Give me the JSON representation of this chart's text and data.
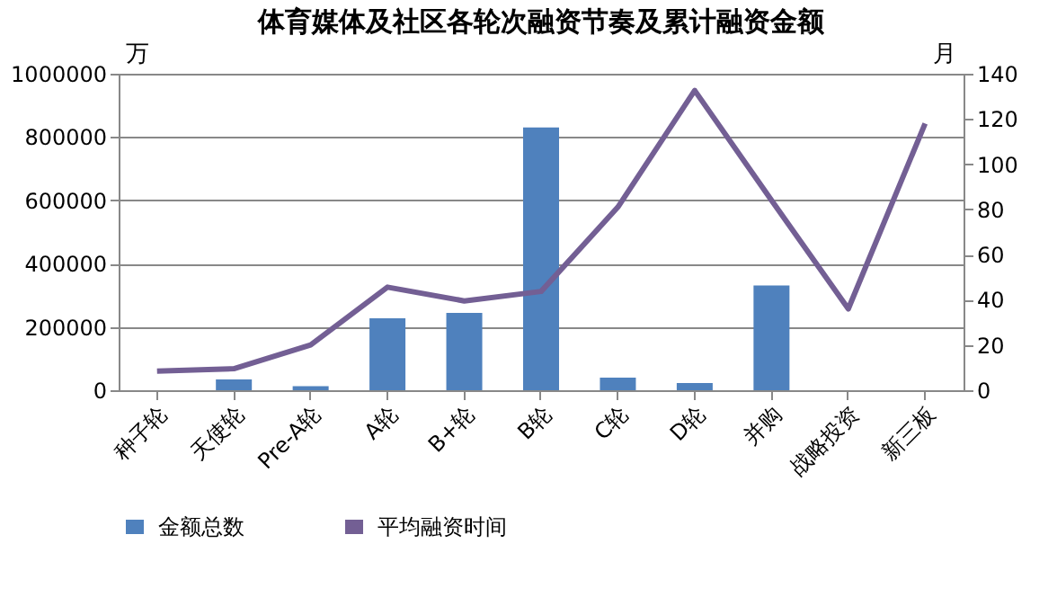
{
  "chart_data": {
    "type": "bar",
    "title": "体育媒体及社区各轮次融资节奏及累计融资金额",
    "ylabel": "万",
    "y2label": "月",
    "categories": [
      "种子轮",
      "天使轮",
      "Pre-A轮",
      "A轮",
      "B+轮",
      "B轮",
      "C轮",
      "D轮",
      "并购",
      "战略投资",
      "新三板"
    ],
    "series": [
      {
        "name": "金额总数",
        "color": "#4f81bd",
        "values": [
          0,
          34000,
          13000,
          227000,
          244000,
          830000,
          40000,
          23000,
          331000,
          0,
          0
        ]
      },
      {
        "name": "平均融资时间",
        "type": "line",
        "axis": "y2",
        "color": "#735f94",
        "values": [
          8.5,
          9.5,
          20,
          45.6,
          39.5,
          43.7,
          81,
          132.6,
          84,
          36,
          118
        ]
      }
    ],
    "ylim": [
      0,
      1000000
    ],
    "yticks": [
      0,
      200000,
      400000,
      600000,
      800000,
      1000000
    ],
    "y2lim": [
      0,
      140
    ],
    "y2ticks": [
      0,
      20,
      40,
      60,
      80,
      100,
      120,
      140
    ],
    "grid": "y",
    "legend": "bottom"
  }
}
